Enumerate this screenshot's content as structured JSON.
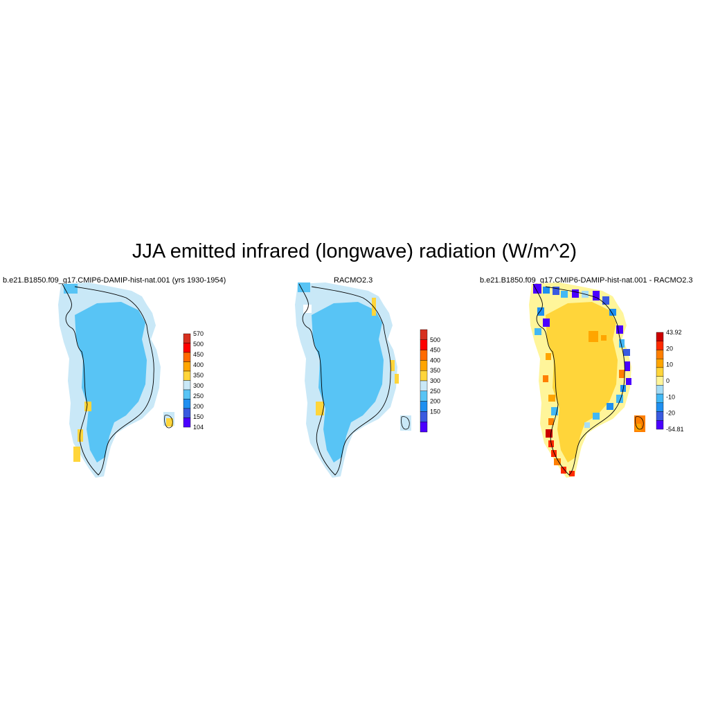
{
  "title": "JJA emitted infrared (longwave) radiation (W/m^2)",
  "panels": [
    {
      "id": "model",
      "title": "b.e21.B1850.f09_g17.CMIP6-DAMIP-hist-nat.001 (yrs 1930-1954)",
      "colorbar": {
        "labels": [
          "570",
          "500",
          "450",
          "400",
          "350",
          "300",
          "250",
          "200",
          "150",
          "104"
        ],
        "colors": [
          "#d7301f",
          "#ff0000",
          "#ff6a00",
          "#ffa500",
          "#ffd53a",
          "#c9e8f7",
          "#58c4f5",
          "#1f8ff0",
          "#3a5ae0",
          "#4b00ff"
        ]
      },
      "dominant_field": "light-blue (250-300)",
      "margin_field": "pale-blue (300-350)",
      "coastal_patches": "yellow (350-400)"
    },
    {
      "id": "obs",
      "title": "RACMO2.3",
      "colorbar": {
        "labels": [
          "500",
          "450",
          "400",
          "350",
          "300",
          "250",
          "200",
          "150"
        ],
        "colors": [
          "#d7301f",
          "#ff0000",
          "#ff6a00",
          "#ffa500",
          "#ffd53a",
          "#c9e8f7",
          "#58c4f5",
          "#1f8ff0",
          "#3a5ae0",
          "#4b00ff"
        ]
      },
      "dominant_field": "light-blue (250-300)",
      "margin_field": "pale-blue (300-350)",
      "coastal_patches": "yellow (350-400)"
    },
    {
      "id": "diff",
      "title": "b.e21.B1850.f09_g17.CMIP6-DAMIP-hist-nat.001 - RACMO2.3",
      "colorbar": {
        "labels": [
          "43.92",
          "20",
          "10",
          "0",
          "-10",
          "-20",
          "-54.81"
        ],
        "colors": [
          "#cc0000",
          "#ff2a00",
          "#ff7f00",
          "#ffa500",
          "#ffd53a",
          "#fff59a",
          "#a6dcf5",
          "#42b8f5",
          "#1f8ff0",
          "#3a5ae0",
          "#4b00ff"
        ]
      },
      "dominant_field": "yellow (0-10)",
      "margin_field": "mixed blue/violet and orange/red",
      "coastal_patches": "red/orange along southwest coast"
    }
  ]
}
